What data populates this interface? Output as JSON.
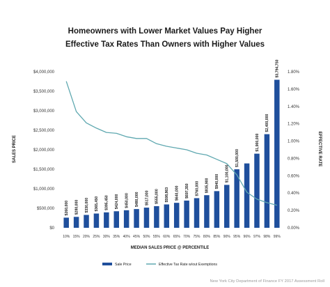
{
  "chart_data": {
    "type": "bar",
    "title_line1": "Homeowners with Lower Market Values Pay Higher",
    "title_line2": "Effective Tax Rates Than Owners with Higher Values",
    "xlabel": "MEDIAN SALES PRICE @ PERCENTILE",
    "ylabel_left": "SALES PRICE",
    "ylabel_right": "EFFECTIVE RATE",
    "categories": [
      "10%",
      "15%",
      "20%",
      "25%",
      "30%",
      "35%",
      "40%",
      "45%",
      "50%",
      "55%",
      "60%",
      "65%",
      "70%",
      "75%",
      "80%",
      "85%",
      "90%",
      "95%",
      "96%",
      "97%",
      "98%",
      "99%"
    ],
    "left_ticks": [
      "$0",
      "$500,000",
      "$1,000,000",
      "$1,500,000",
      "$2,000,000",
      "$2,500,000",
      "$3,000,000",
      "$3,500,000",
      "$4,000,000"
    ],
    "right_ticks": [
      "0.00%",
      "0.20%",
      "0.40%",
      "0.60%",
      "0.80%",
      "1.00%",
      "1.20%",
      "1.40%",
      "1.60%",
      "1.80%"
    ],
    "ylim_left": [
      0,
      4000000
    ],
    "ylim_right": [
      0,
      1.8
    ],
    "grid": false,
    "legend_position": "bottom",
    "series": [
      {
        "name": "Sale Price",
        "kind": "bar",
        "color": "#1f4f9c",
        "values": [
          260000,
          280000,
          330000,
          365450,
          395450,
          424000,
          450000,
          480000,
          517000,
          555000,
          598863,
          640000,
          697350,
          760000,
          835900,
          940000,
          1100000,
          1500000,
          1650000,
          1900000,
          2400000,
          3794750
        ],
        "labels": [
          "$260,000",
          "$280,000",
          "$330,000",
          "$365,450",
          "$395,450",
          "$424,000",
          "$450,000",
          "$480,000",
          "$517,000",
          "$555,000",
          "$598,863",
          "$640,000",
          "$697,350",
          "$760,000",
          "$835,900",
          "$940,000",
          "$1,100,000",
          "$1,500,000",
          "",
          "$1,900,000",
          "$2,400,000",
          "$3,794,750"
        ]
      },
      {
        "name": "Effective Tax Rate w/out Exemptions",
        "kind": "line",
        "color": "#5fa8b0",
        "values": [
          1.69,
          1.34,
          1.21,
          1.15,
          1.1,
          1.09,
          1.05,
          1.03,
          1.03,
          0.97,
          0.94,
          0.92,
          0.9,
          0.86,
          0.84,
          0.79,
          0.74,
          0.61,
          0.41,
          0.33,
          0.29,
          0.26
        ]
      }
    ]
  },
  "source": "New York City Department of Finance FY 2017 Assessment Roll"
}
